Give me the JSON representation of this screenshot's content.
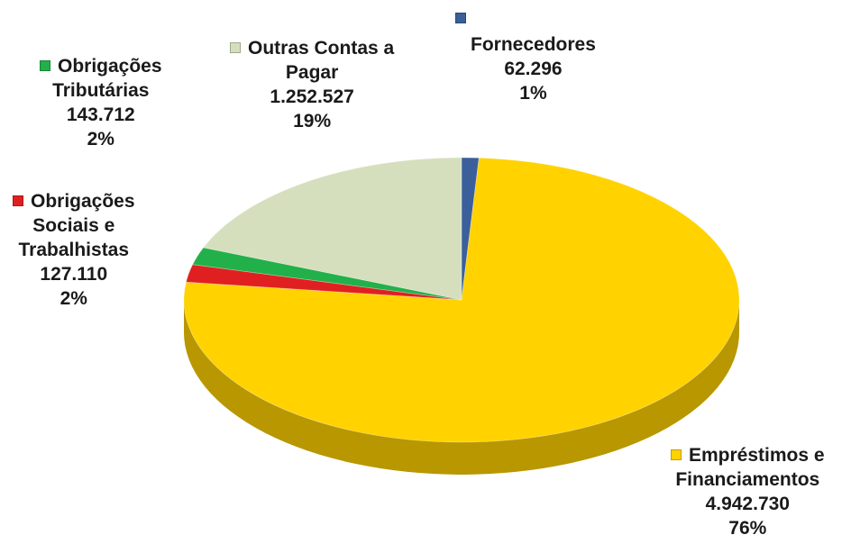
{
  "chart_data": {
    "type": "pie",
    "title": "",
    "style": "3d-exploded-none",
    "slices": [
      {
        "name_lines": [
          "Fornecedores"
        ],
        "value": "62.296",
        "percent": "1%",
        "percent_value": 1,
        "color": "#3a5f9a"
      },
      {
        "name_lines": [
          "Empréstimos e",
          "Financiamentos"
        ],
        "value": "4.942.730",
        "percent": "76%",
        "percent_value": 76,
        "color": "#ffd200"
      },
      {
        "name_lines": [
          "Obrigações",
          "Sociais e",
          "Trabalhistas"
        ],
        "value": "127.110",
        "percent": "2%",
        "percent_value": 2,
        "color": "#e02020"
      },
      {
        "name_lines": [
          "Obrigações",
          "Tributárias"
        ],
        "value": "143.712",
        "percent": "2%",
        "percent_value": 2,
        "color": "#22b04a"
      },
      {
        "name_lines": [
          "Outras Contas a",
          "Pagar"
        ],
        "value": "1.252.527",
        "percent": "19%",
        "percent_value": 19,
        "color": "#d6dfbd"
      }
    ]
  }
}
